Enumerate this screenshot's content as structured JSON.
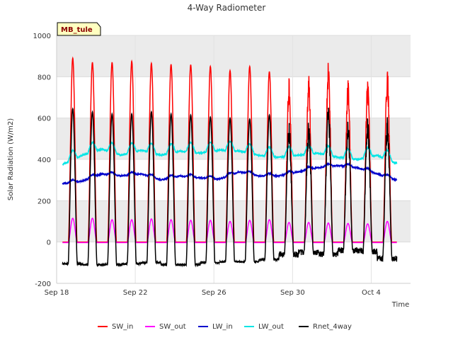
{
  "chart_data": {
    "type": "line",
    "title": "4-Way Radiometer",
    "xlabel": "Time",
    "ylabel": "Solar Radiation (W/m2)",
    "site_label": "MB_tule",
    "xlim": [
      "2023-09-18",
      "2023-10-06"
    ],
    "ylim": [
      -200,
      1000
    ],
    "y_ticks": [
      -200,
      0,
      200,
      400,
      600,
      800,
      1000
    ],
    "x_ticks": [
      {
        "label": "Sep 18",
        "date": "2023-09-18"
      },
      {
        "label": "Sep 22",
        "date": "2023-09-22"
      },
      {
        "label": "Sep 26",
        "date": "2023-09-26"
      },
      {
        "label": "Sep 30",
        "date": "2023-09-30"
      },
      {
        "label": "Oct 4",
        "date": "2023-10-04"
      }
    ],
    "background_bands": true,
    "legend_position": "bottom",
    "x": [
      "2023-09-18",
      "2023-09-19",
      "2023-09-20",
      "2023-09-21",
      "2023-09-22",
      "2023-09-23",
      "2023-09-24",
      "2023-09-25",
      "2023-09-26",
      "2023-09-27",
      "2023-09-28",
      "2023-09-29",
      "2023-09-30",
      "2023-10-01",
      "2023-10-02",
      "2023-10-03",
      "2023-10-04",
      "2023-10-05"
    ],
    "series": [
      {
        "name": "SW_in",
        "color": "#ff0000",
        "kind": "daily_peak",
        "night": 0,
        "values": [
          890,
          870,
          870,
          875,
          865,
          860,
          858,
          850,
          830,
          850,
          825,
          795,
          810,
          875,
          790,
          790,
          835,
          0
        ]
      },
      {
        "name": "SW_out",
        "color": "#ff00ff",
        "kind": "daily_peak",
        "night": -3,
        "values": [
          115,
          115,
          108,
          108,
          112,
          108,
          105,
          105,
          100,
          105,
          108,
          95,
          95,
          92,
          90,
          88,
          100,
          0
        ]
      },
      {
        "name": "LW_in",
        "color": "#0000cc",
        "kind": "smooth",
        "night": 0,
        "values": [
          282,
          295,
          330,
          320,
          330,
          300,
          320,
          310,
          305,
          340,
          320,
          320,
          340,
          360,
          370,
          360,
          330,
          300
        ]
      },
      {
        "name": "LW_out",
        "color": "#00e5e5",
        "kind": "smooth",
        "night": 0,
        "values": [
          375,
          420,
          450,
          420,
          445,
          420,
          440,
          430,
          445,
          440,
          420,
          410,
          420,
          430,
          410,
          400,
          420,
          380
        ]
      },
      {
        "name": "Rnet_4way",
        "color": "#000000",
        "kind": "daily_peak_net",
        "night_values": [
          -105,
          -110,
          -110,
          -105,
          -100,
          -110,
          -110,
          -100,
          -95,
          -95,
          -85,
          -60,
          -50,
          -60,
          -40,
          -45,
          -80,
          -90
        ],
        "values": [
          645,
          630,
          620,
          620,
          630,
          620,
          615,
          605,
          600,
          595,
          615,
          585,
          600,
          670,
          600,
          605,
          620,
          0
        ]
      }
    ]
  }
}
